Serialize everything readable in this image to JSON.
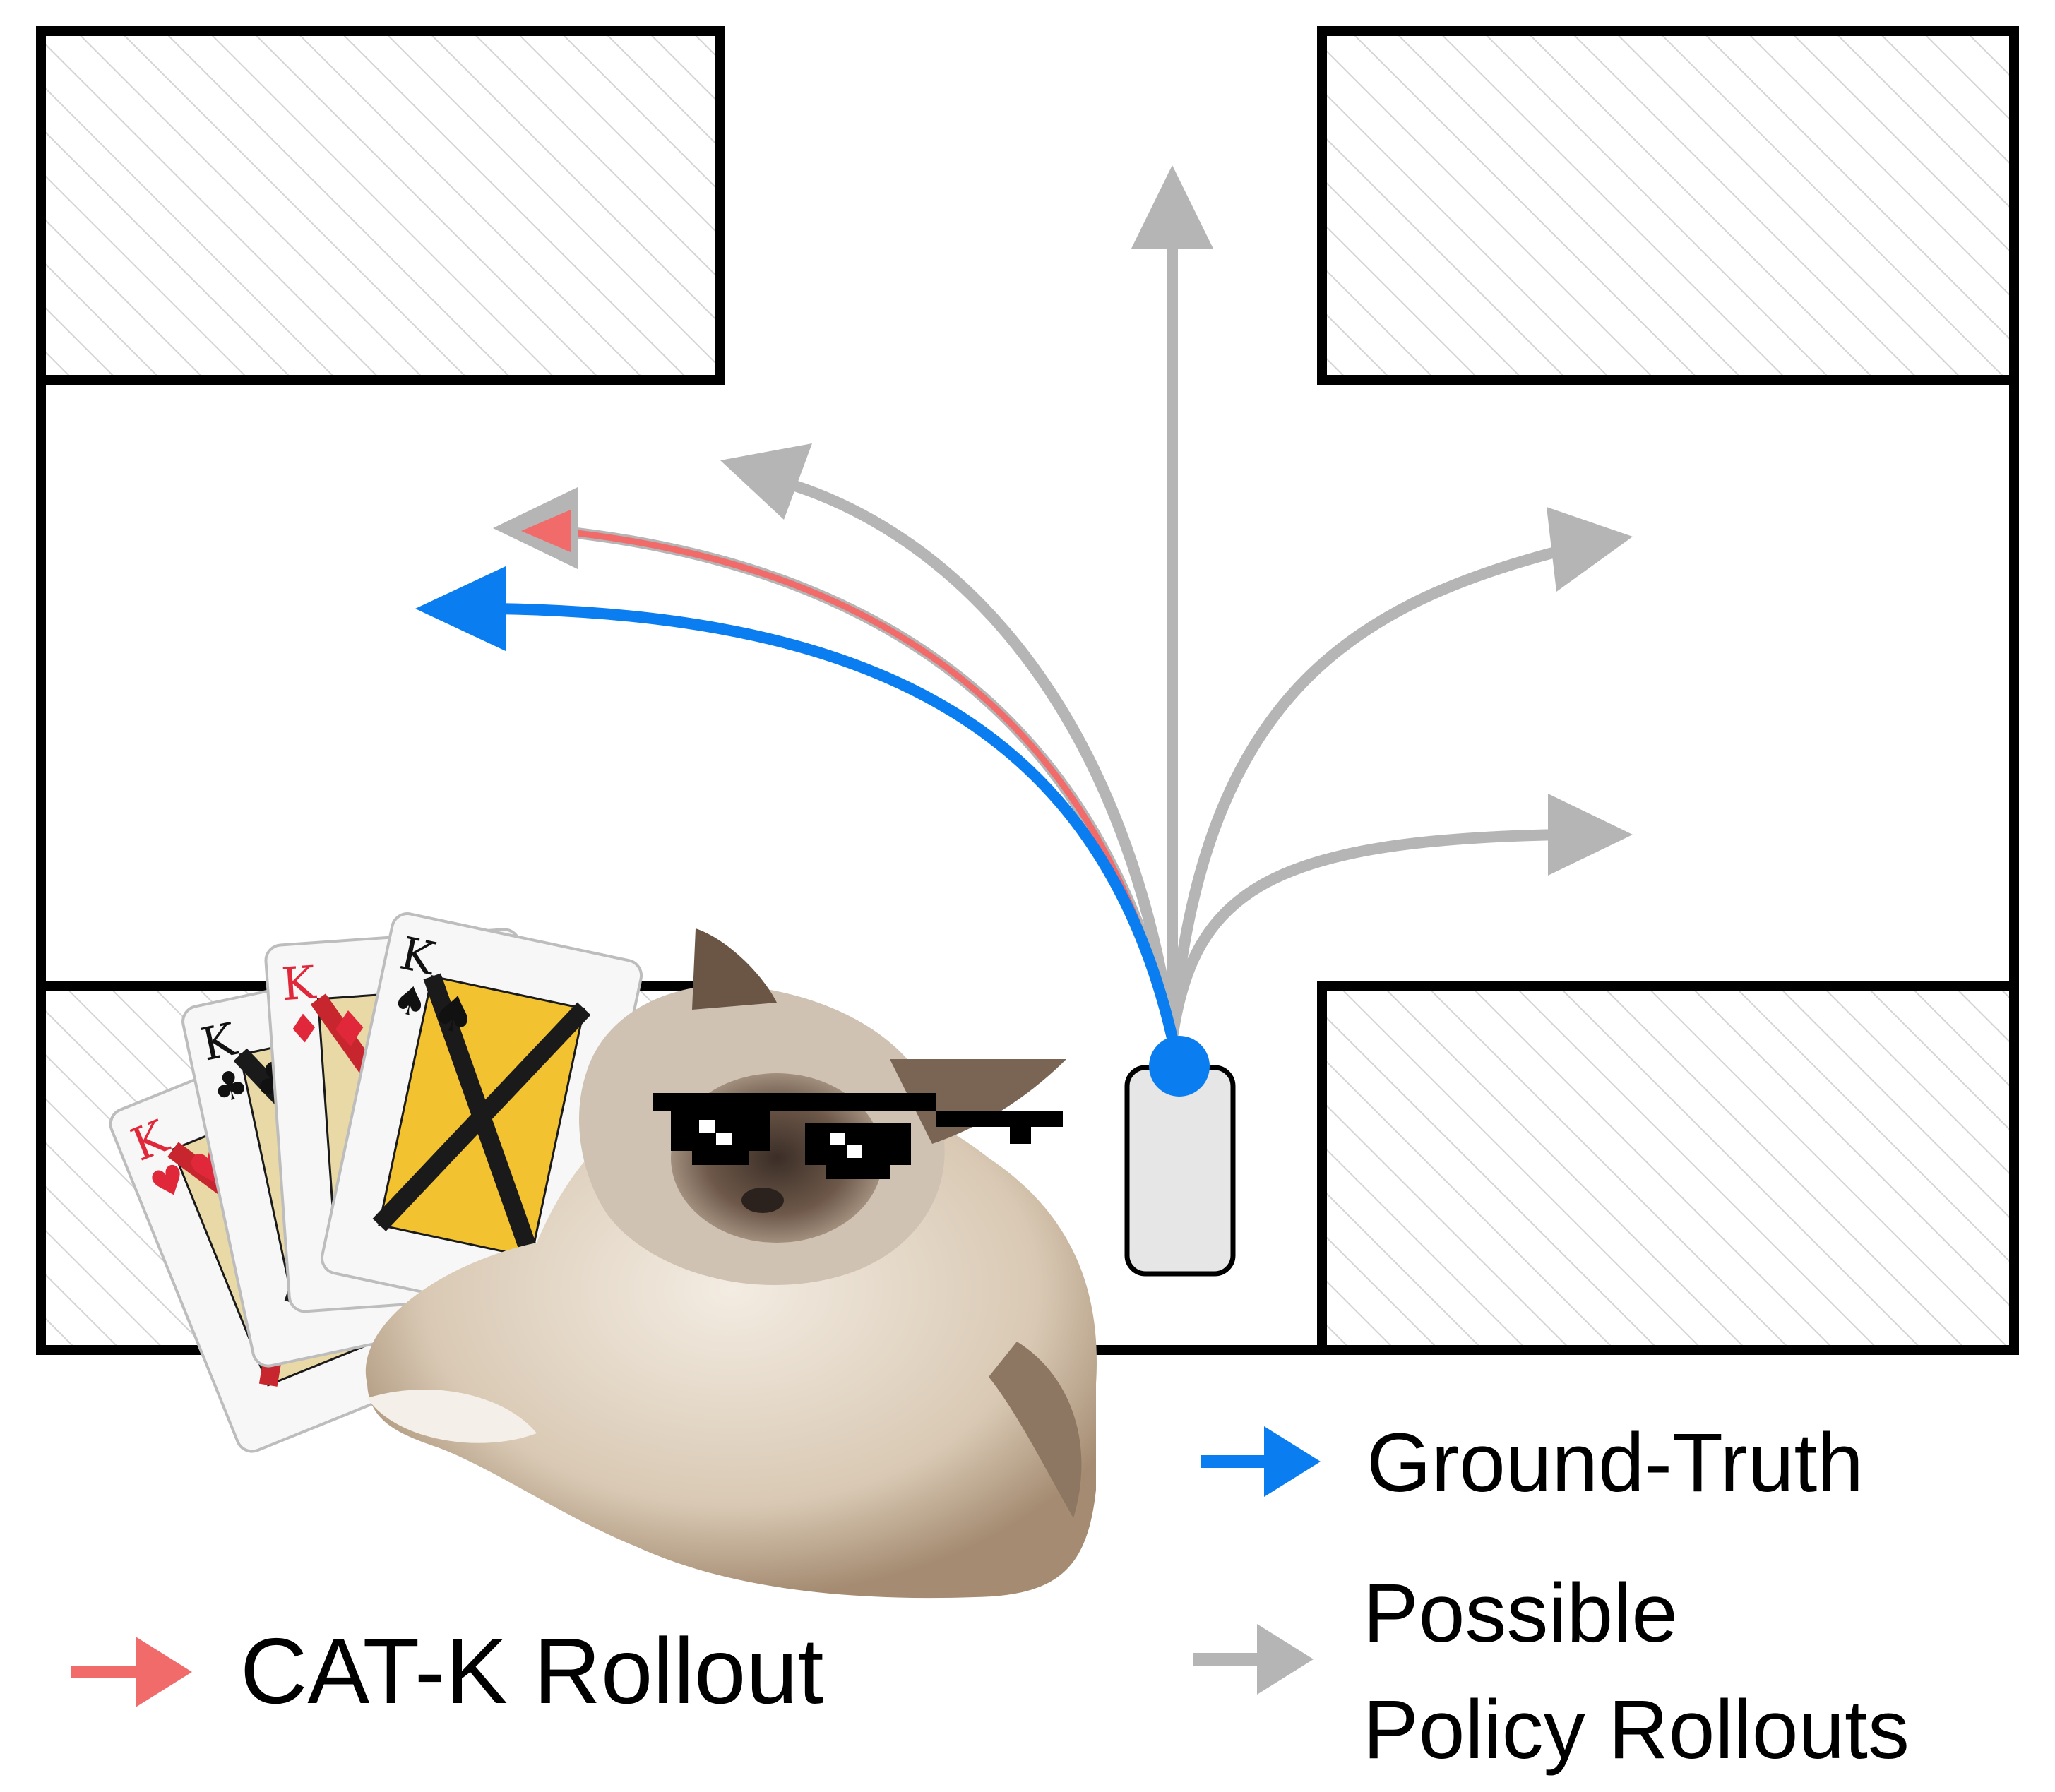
{
  "legend": {
    "ground_truth": "Ground-Truth",
    "possible_line1": "Possible",
    "possible_line2": "Policy Rollouts",
    "catk": "CAT-K Rollout"
  },
  "colors": {
    "ground_truth": "#0a7ef0",
    "catk": "#f26b6b",
    "possible": "#b5b5b5",
    "wall": "#000000",
    "hatch": "#d4d4d4",
    "vehicle_fill": "#e6e6e6"
  },
  "cards": [
    {
      "rank": "K",
      "suit": "♥",
      "color": "#e0283a"
    },
    {
      "rank": "K",
      "suit": "♣",
      "color": "#111111"
    },
    {
      "rank": "K",
      "suit": "♦",
      "color": "#e0283a"
    },
    {
      "rank": "K",
      "suit": "♠",
      "color": "#111111"
    }
  ]
}
